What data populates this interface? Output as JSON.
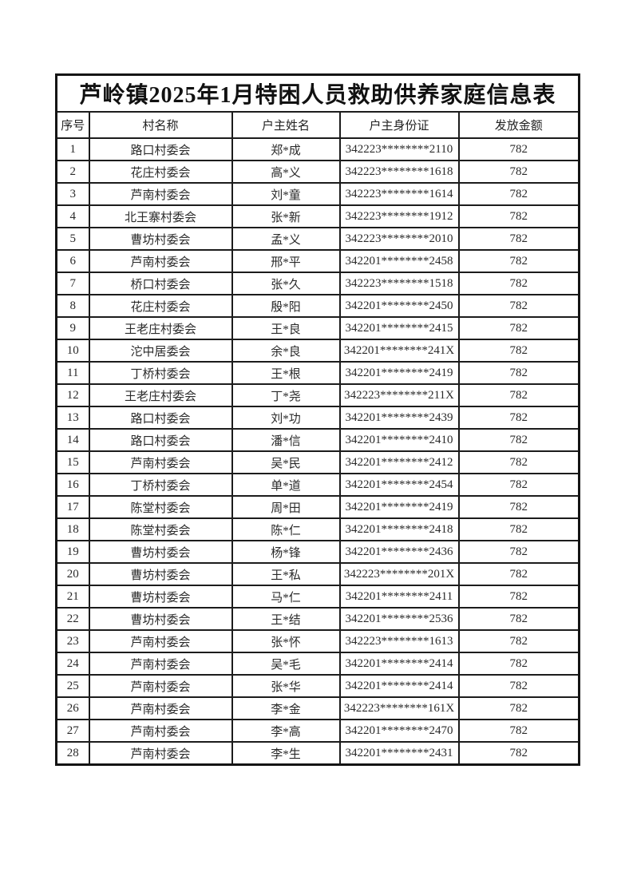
{
  "page": {
    "title": "芦岭镇2025年1月特困人员救助供养家庭信息表"
  },
  "table": {
    "columns": [
      "序号",
      "村名称",
      "户主姓名",
      "户主身份证",
      "发放金额"
    ],
    "rows": [
      [
        "1",
        "路口村委会",
        "郑*成",
        "342223********2110",
        "782"
      ],
      [
        "2",
        "花庄村委会",
        "高*义",
        "342223********1618",
        "782"
      ],
      [
        "3",
        "芦南村委会",
        "刘*童",
        "342223********1614",
        "782"
      ],
      [
        "4",
        "北王寨村委会",
        "张*新",
        "342223********1912",
        "782"
      ],
      [
        "5",
        "曹坊村委会",
        "孟*义",
        "342223********2010",
        "782"
      ],
      [
        "6",
        "芦南村委会",
        "邢*平",
        "342201********2458",
        "782"
      ],
      [
        "7",
        "桥口村委会",
        "张*久",
        "342223********1518",
        "782"
      ],
      [
        "8",
        "花庄村委会",
        "殷*阳",
        "342201********2450",
        "782"
      ],
      [
        "9",
        "王老庄村委会",
        "王*良",
        "342201********2415",
        "782"
      ],
      [
        "10",
        "沱中居委会",
        "余*良",
        "342201********241X",
        "782"
      ],
      [
        "11",
        "丁桥村委会",
        "王*根",
        "342201********2419",
        "782"
      ],
      [
        "12",
        "王老庄村委会",
        "丁*尧",
        "342223********211X",
        "782"
      ],
      [
        "13",
        "路口村委会",
        "刘*功",
        "342201********2439",
        "782"
      ],
      [
        "14",
        "路口村委会",
        "潘*信",
        "342201********2410",
        "782"
      ],
      [
        "15",
        "芦南村委会",
        "吴*民",
        "342201********2412",
        "782"
      ],
      [
        "16",
        "丁桥村委会",
        "单*道",
        "342201********2454",
        "782"
      ],
      [
        "17",
        "陈堂村委会",
        "周*田",
        "342201********2419",
        "782"
      ],
      [
        "18",
        "陈堂村委会",
        "陈*仁",
        "342201********2418",
        "782"
      ],
      [
        "19",
        "曹坊村委会",
        "杨*锋",
        "342201********2436",
        "782"
      ],
      [
        "20",
        "曹坊村委会",
        "王*私",
        "342223********201X",
        "782"
      ],
      [
        "21",
        "曹坊村委会",
        "马*仁",
        "342201********2411",
        "782"
      ],
      [
        "22",
        "曹坊村委会",
        "王*结",
        "342201********2536",
        "782"
      ],
      [
        "23",
        "芦南村委会",
        "张*怀",
        "342223********1613",
        "782"
      ],
      [
        "24",
        "芦南村委会",
        "吴*毛",
        "342201********2414",
        "782"
      ],
      [
        "25",
        "芦南村委会",
        "张*华",
        "342201********2414",
        "782"
      ],
      [
        "26",
        "芦南村委会",
        "李*金",
        "342223********161X",
        "782"
      ],
      [
        "27",
        "芦南村委会",
        "李*高",
        "342201********2470",
        "782"
      ],
      [
        "28",
        "芦南村委会",
        "李*生",
        "342201********2431",
        "782"
      ]
    ]
  }
}
